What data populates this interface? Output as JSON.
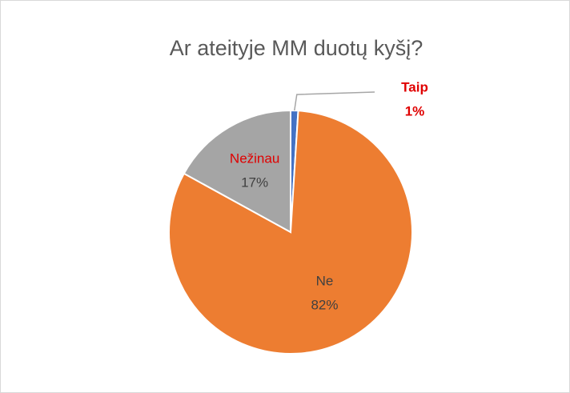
{
  "chart_data": {
    "type": "pie",
    "title": "Ar ateityje MM duotų kyšį?",
    "categories": [
      "Taip",
      "Ne",
      "Nežinau"
    ],
    "values": [
      1,
      82,
      17
    ],
    "value_labels": [
      "1%",
      "82%",
      "17%"
    ],
    "colors": [
      "#4472c4",
      "#ed7d31",
      "#a5a5a5"
    ]
  }
}
